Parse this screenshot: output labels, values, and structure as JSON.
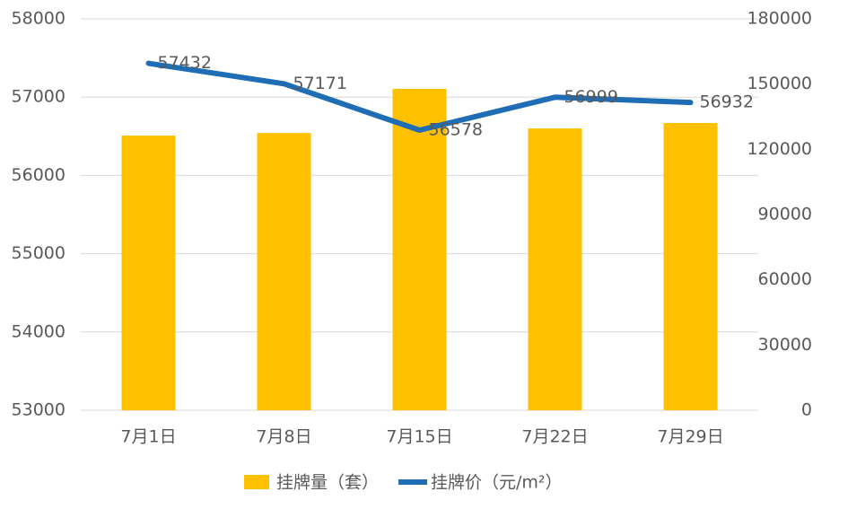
{
  "chart_data": {
    "type": "bar-line",
    "categories": [
      "7月1日",
      "7月8日",
      "7月15日",
      "7月22日",
      "7月29日"
    ],
    "series": [
      {
        "name": "挂牌量（套）",
        "type": "bar",
        "axis": "y2",
        "color": "#ffc000",
        "values": [
          126300,
          127500,
          147800,
          129600,
          132100
        ]
      },
      {
        "name": "挂牌价（元/m²）",
        "type": "line",
        "axis": "y",
        "color": "#1f6db5",
        "values": [
          57432,
          57171,
          56578,
          56999,
          56932
        ]
      }
    ],
    "ylim": [
      53000,
      58000
    ],
    "yticks": [
      53000,
      54000,
      55000,
      56000,
      57000,
      58000
    ],
    "y2lim": [
      0,
      180000
    ],
    "y2ticks": [
      0,
      30000,
      60000,
      90000,
      120000,
      150000,
      180000
    ],
    "grid": true
  }
}
